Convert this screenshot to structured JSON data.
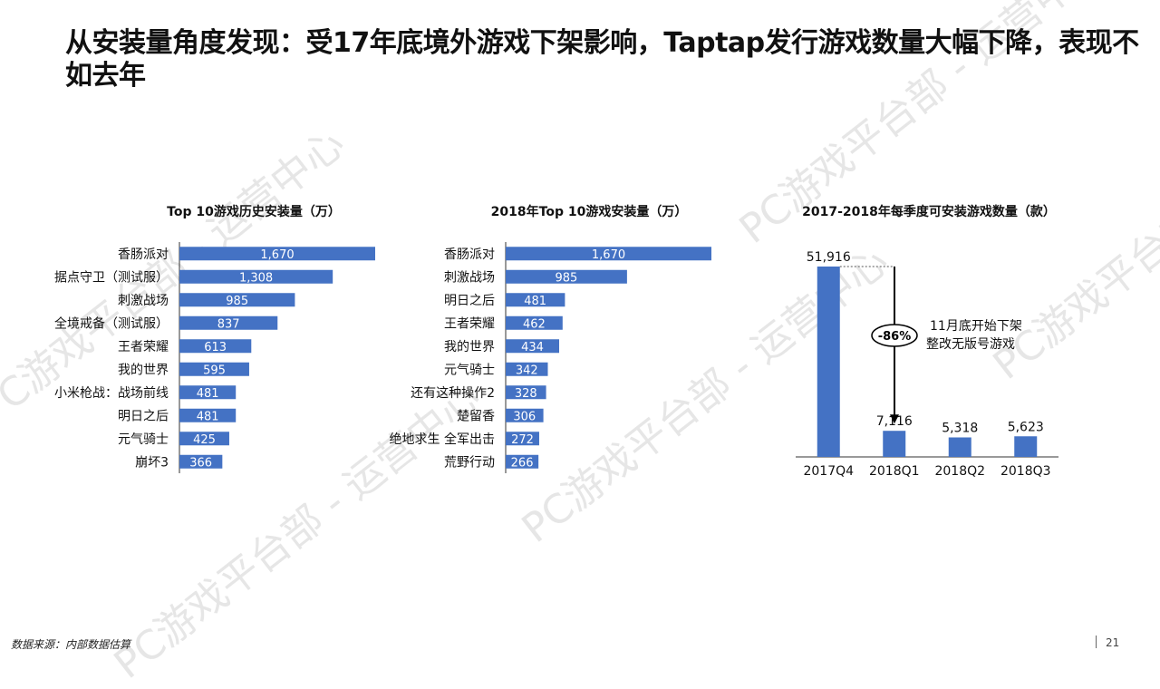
{
  "slide": {
    "title": "从安装量角度发现：受17年底境外游戏下架影响，Taptap发行游戏数量大幅下降，表现不如去年",
    "watermark": "PC游戏平台部 - 运营中心",
    "footer_source": "数据来源：内部数据估算",
    "page_number": "21"
  },
  "colors": {
    "bar": "#4472C4",
    "bar_label_text": "#ffffff",
    "axis": "#333333"
  },
  "chart_data": [
    {
      "type": "bar",
      "orientation": "horizontal",
      "title": "Top 10游戏历史安装量（万）",
      "categories": [
        "香肠派对",
        "据点守卫（测试服）",
        "刺激战场",
        "全境戒备（测试服）",
        "王者荣耀",
        "我的世界",
        "小米枪战：战场前线",
        "明日之后",
        "元气骑士",
        "崩坏3"
      ],
      "values": [
        1670,
        1308,
        985,
        837,
        613,
        595,
        481,
        481,
        425,
        366
      ],
      "value_labels": [
        "1,670",
        "1,308",
        "985",
        "837",
        "613",
        "595",
        "481",
        "481",
        "425",
        "366"
      ],
      "xlim": [
        0,
        2000
      ]
    },
    {
      "type": "bar",
      "orientation": "horizontal",
      "title": "2018年Top 10游戏安装量（万）",
      "categories": [
        "香肠派对",
        "刺激战场",
        "明日之后",
        "王者荣耀",
        "我的世界",
        "元气骑士",
        "还有这种操作2",
        "楚留香",
        "绝地求生 全军出击",
        "荒野行动"
      ],
      "values": [
        1670,
        985,
        481,
        462,
        434,
        342,
        328,
        306,
        272,
        266
      ],
      "value_labels": [
        "1,670",
        "985",
        "481",
        "462",
        "434",
        "342",
        "328",
        "306",
        "272",
        "266"
      ],
      "xlim": [
        0,
        2000
      ]
    },
    {
      "type": "bar",
      "orientation": "vertical",
      "title": "2017-2018年每季度可安装游戏数量（款）",
      "categories": [
        "2017Q4",
        "2018Q1",
        "2018Q2",
        "2018Q3"
      ],
      "values": [
        51916,
        7116,
        5318,
        5623
      ],
      "value_labels": [
        "51,916",
        "7,116",
        "5,318",
        "5,623"
      ],
      "ylim": [
        0,
        60000
      ],
      "annotations": {
        "change": "-86%",
        "note_line1": "11月底开始下架",
        "note_line2": "整改无版号游戏"
      }
    }
  ]
}
